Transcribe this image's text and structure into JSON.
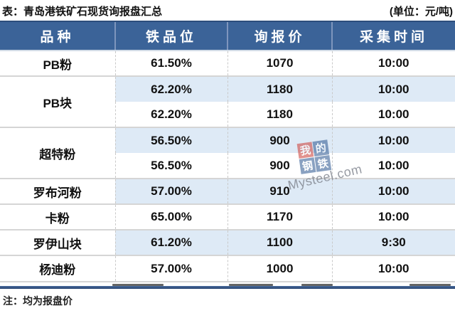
{
  "title": "表：青岛港铁矿石现货询报盘汇总",
  "unit_label": "(单位：元/吨)",
  "note": "注：均为报盘价",
  "colors": {
    "header_bg": "#3b6398",
    "shaded_row": "#deeaf6",
    "bottom_border": "#24416e",
    "watermark_red": "#ce4a44",
    "watermark_blue": "#3b6398"
  },
  "watermark": {
    "squares": [
      "我",
      "的",
      "钢",
      "铁"
    ],
    "site": "Mysteel.com"
  },
  "table": {
    "headers": [
      "品种",
      "铁品位",
      "询报价",
      "采集时间"
    ],
    "groups": [
      {
        "variety": "PB粉",
        "rows": [
          {
            "grade": "61.50%",
            "price": "1070",
            "time": "10:00",
            "shade": false
          }
        ]
      },
      {
        "variety": "PB块",
        "rows": [
          {
            "grade": "62.20%",
            "price": "1180",
            "time": "10:00",
            "shade": true
          },
          {
            "grade": "62.20%",
            "price": "1180",
            "time": "10:00",
            "shade": false
          }
        ]
      },
      {
        "variety": "超特粉",
        "rows": [
          {
            "grade": "56.50%",
            "price": "900",
            "time": "10:00",
            "shade": true
          },
          {
            "grade": "56.50%",
            "price": "900",
            "time": "10:00",
            "shade": false
          }
        ]
      },
      {
        "variety": "罗布河粉",
        "rows": [
          {
            "grade": "57.00%",
            "price": "910",
            "time": "10:00",
            "shade": true
          }
        ]
      },
      {
        "variety": "卡粉",
        "rows": [
          {
            "grade": "65.00%",
            "price": "1170",
            "time": "10:00",
            "shade": false
          }
        ]
      },
      {
        "variety": "罗伊山块",
        "rows": [
          {
            "grade": "61.20%",
            "price": "1100",
            "time": "9:30",
            "shade": true
          }
        ]
      },
      {
        "variety": "杨迪粉",
        "rows": [
          {
            "grade": "57.00%",
            "price": "1000",
            "time": "10:00",
            "shade": false
          }
        ]
      }
    ]
  },
  "chart_data": {
    "type": "table",
    "title": "表：青岛港铁矿石现货询报盘汇总",
    "unit": "元/吨",
    "columns": [
      "品种",
      "铁品位",
      "询报价",
      "采集时间"
    ],
    "rows": [
      [
        "PB粉",
        "61.50%",
        1070,
        "10:00"
      ],
      [
        "PB块",
        "62.20%",
        1180,
        "10:00"
      ],
      [
        "PB块",
        "62.20%",
        1180,
        "10:00"
      ],
      [
        "超特粉",
        "56.50%",
        900,
        "10:00"
      ],
      [
        "超特粉",
        "56.50%",
        900,
        "10:00"
      ],
      [
        "罗布河粉",
        "57.00%",
        910,
        "10:00"
      ],
      [
        "卡粉",
        "65.00%",
        1170,
        "10:00"
      ],
      [
        "罗伊山块",
        "61.20%",
        1100,
        "9:30"
      ],
      [
        "杨迪粉",
        "57.00%",
        1000,
        "10:00"
      ]
    ],
    "note": "注：均为报盘价"
  }
}
